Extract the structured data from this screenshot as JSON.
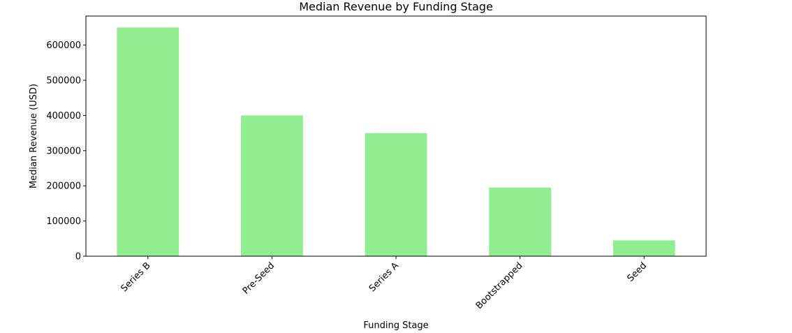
{
  "chart_data": {
    "type": "bar",
    "title": "Median Revenue by Funding Stage",
    "xlabel": "Funding Stage",
    "ylabel": "Median Revenue (USD)",
    "categories": [
      "Series B",
      "Pre-Seed",
      "Series A",
      "Bootstrapped",
      "Seed"
    ],
    "values": [
      650000,
      400000,
      350000,
      195000,
      45000
    ],
    "ylim": [
      0,
      682500
    ],
    "yticks": [
      0,
      100000,
      200000,
      300000,
      400000,
      500000,
      600000
    ],
    "ytick_labels": [
      "0",
      "100000",
      "200000",
      "300000",
      "400000",
      "500000",
      "600000"
    ],
    "bar_color": "#90ee90",
    "grid": false,
    "legend": "none"
  }
}
